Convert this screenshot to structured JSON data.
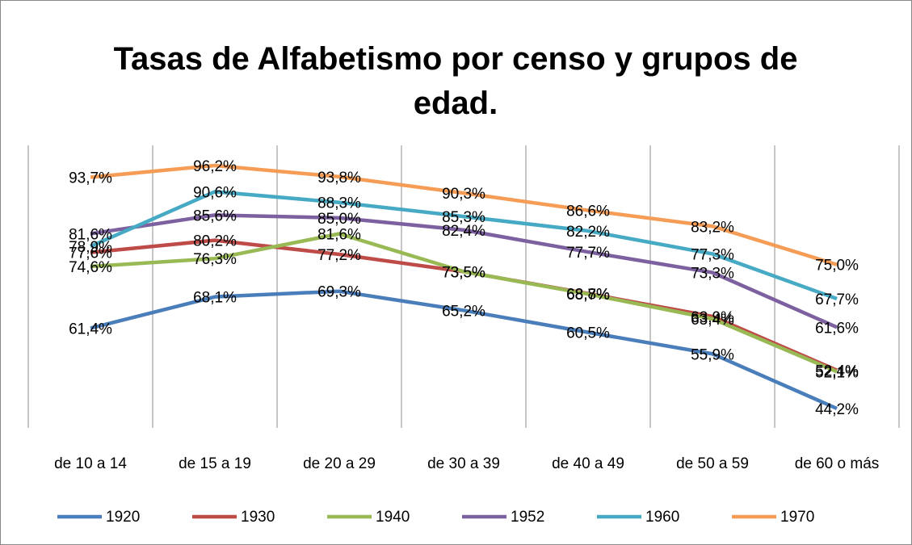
{
  "chart_data": {
    "type": "line",
    "title": "Tasas de Alfabetismo por censo y grupos de edad.",
    "categories": [
      "de 10 a 14",
      "de 15 a 19",
      "de 20 a 29",
      "de 30 a 39",
      "de 40 a 49",
      "de 50 a 59",
      "de 60 o más"
    ],
    "series": [
      {
        "name": "1920",
        "color": "#4a7ebb",
        "values": [
          61.4,
          68.1,
          69.3,
          65.2,
          60.5,
          55.9,
          44.2
        ],
        "value_labels": [
          "61,4%",
          "68,1%",
          "69,3%",
          "65,2%",
          "60,5%",
          "55,9%",
          "44,2%"
        ]
      },
      {
        "name": "1930",
        "color": "#be4b48",
        "values": [
          77.6,
          80.2,
          77.2,
          73.5,
          68.8,
          63.9,
          52.4
        ],
        "value_labels": [
          "77,6%",
          "80,2%",
          "77,2%",
          "73,5%",
          "68,8%",
          "63,9%",
          "52,4%"
        ]
      },
      {
        "name": "1940",
        "color": "#98b954",
        "values": [
          74.6,
          76.3,
          81.6,
          73.5,
          68.7,
          63.4,
          52.1
        ],
        "value_labels": [
          "74,6%",
          "76,3%",
          "81,6%",
          "73,5%",
          "68,7%",
          "63,4%",
          "52,1%"
        ]
      },
      {
        "name": "1952",
        "color": "#7d60a0",
        "values": [
          81.6,
          85.6,
          85.0,
          82.4,
          77.7,
          73.3,
          61.6
        ],
        "value_labels": [
          "81,6%",
          "85,6%",
          "85,0%",
          "82,4%",
          "77,7%",
          "73,3%",
          "61,6%"
        ]
      },
      {
        "name": "1960",
        "color": "#46aac5",
        "values": [
          78.9,
          90.6,
          88.3,
          85.3,
          82.2,
          77.3,
          67.7
        ],
        "value_labels": [
          "78,9%",
          "90,6%",
          "88,3%",
          "85,3%",
          "82,2%",
          "77,3%",
          "67,7%"
        ]
      },
      {
        "name": "1970",
        "color": "#f59d56",
        "values": [
          93.7,
          96.2,
          93.8,
          90.3,
          86.6,
          83.2,
          75.0
        ],
        "value_labels": [
          "93,7%",
          "96,2%",
          "93,8%",
          "90,3%",
          "86,6%",
          "83,2%",
          "75,0%"
        ]
      }
    ],
    "grid": true,
    "legend": "bottom"
  }
}
